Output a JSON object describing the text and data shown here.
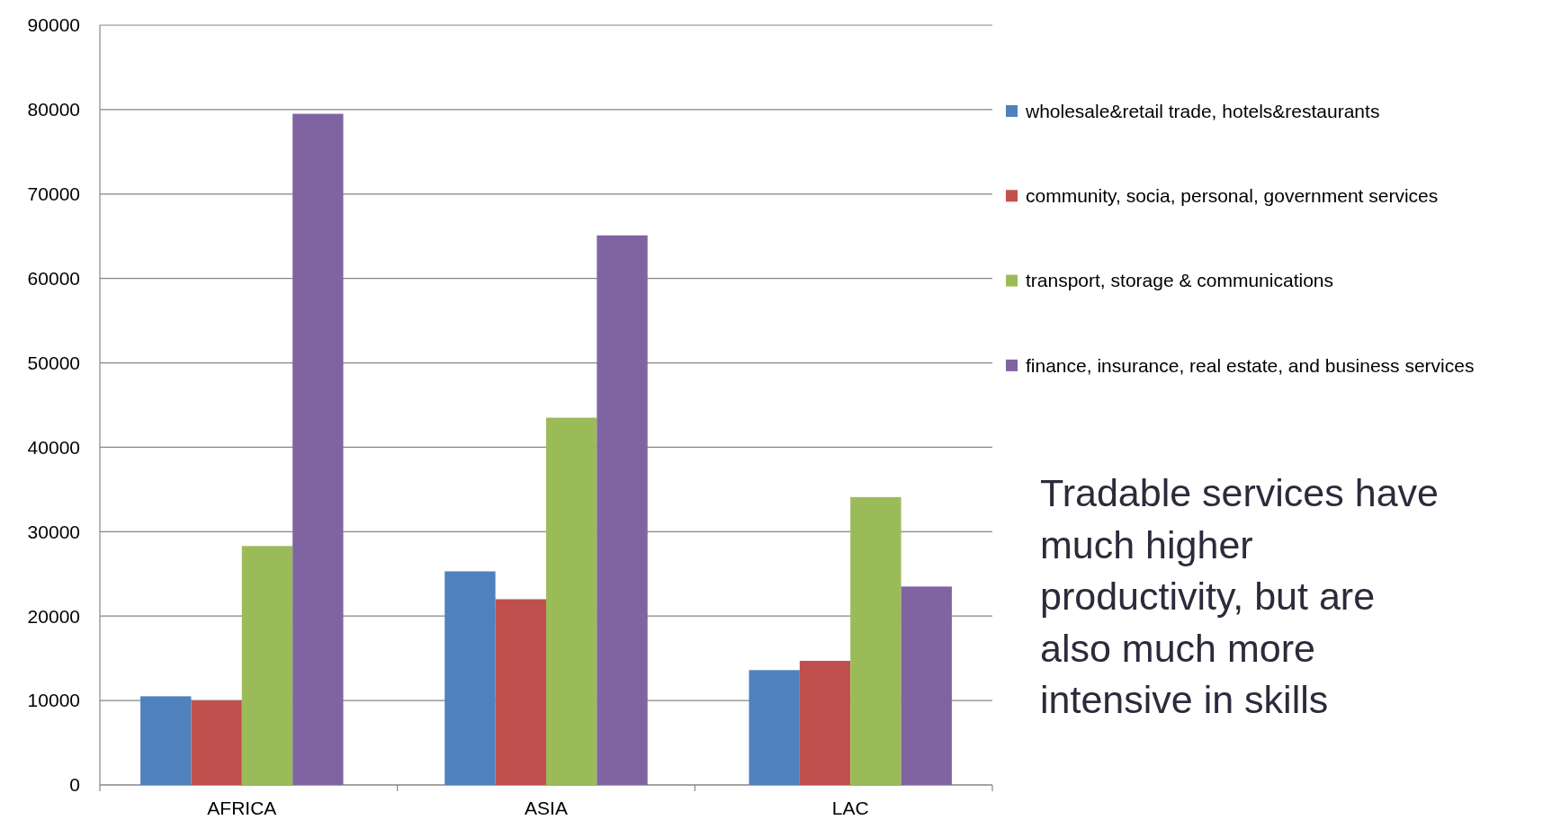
{
  "chart_data": {
    "type": "bar",
    "categories": [
      "AFRICA",
      "ASIA",
      "LAC"
    ],
    "series": [
      {
        "name": "wholesale&retail trade, hotels&restaurants",
        "color": "#4f81bd",
        "values": [
          10500,
          25300,
          13600
        ]
      },
      {
        "name": "community, socia, personal, government services",
        "color": "#c0504d",
        "values": [
          10000,
          22000,
          14700
        ]
      },
      {
        "name": "transport, storage & communications",
        "color": "#9bbb59",
        "values": [
          28300,
          43500,
          34100
        ]
      },
      {
        "name": "finance, insurance, real estate, and business services",
        "color": "#8064a2",
        "values": [
          79500,
          65100,
          23500
        ]
      }
    ],
    "ylim": [
      0,
      90000
    ],
    "yticks": [
      0,
      10000,
      20000,
      30000,
      40000,
      50000,
      60000,
      70000,
      80000,
      90000
    ],
    "grid": "y",
    "legend": "right",
    "annotations": [
      "Tradable services have much higher productivity, but are also much more intensive in skills"
    ]
  }
}
